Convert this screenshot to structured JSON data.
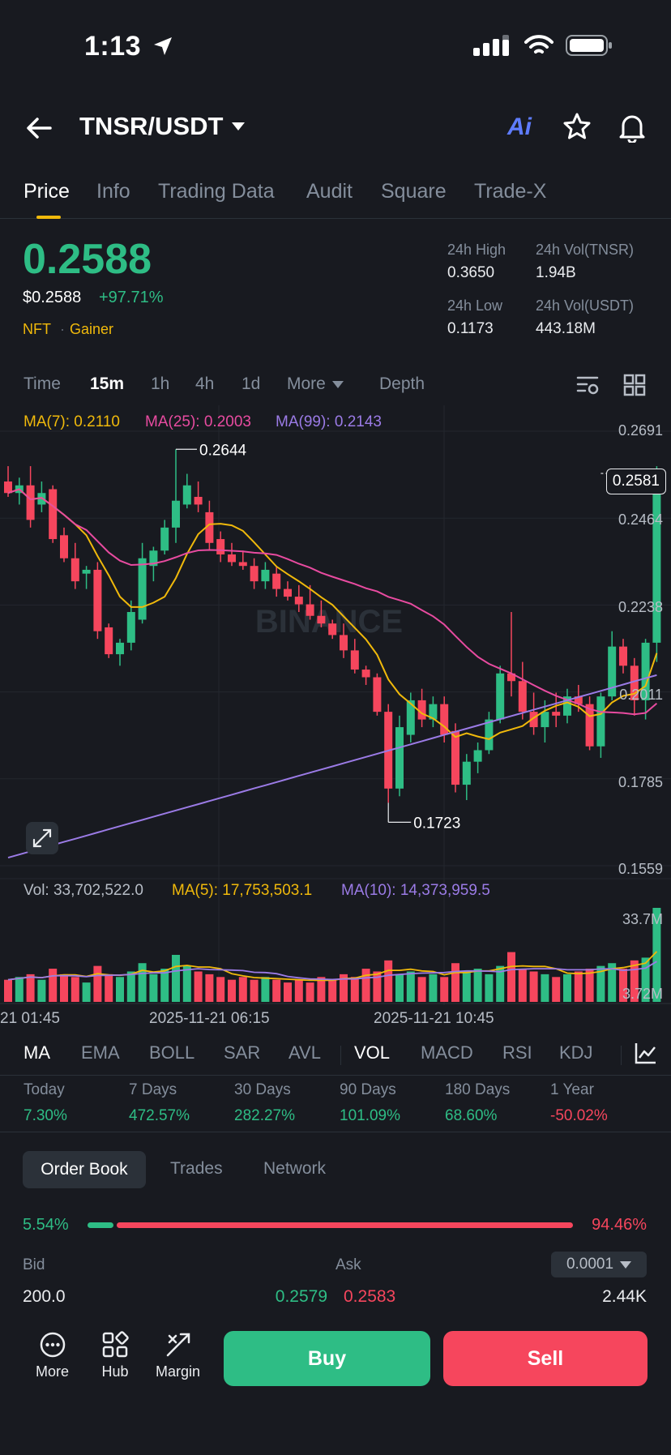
{
  "status_bar": {
    "time": "1:13"
  },
  "header": {
    "pair": "TNSR/USDT",
    "ai_label": "Ai"
  },
  "tabs": [
    "Price",
    "Info",
    "Trading Data",
    "Audit",
    "Square",
    "Trade-X"
  ],
  "price": {
    "last": "0.2588",
    "usd": "$0.2588",
    "change": "+97.71%",
    "tags": [
      "NFT",
      "Gainer"
    ],
    "tag_separator": "·"
  },
  "stats": {
    "high_label": "24h High",
    "high": "0.3650",
    "vol_base_label": "24h Vol(TNSR)",
    "vol_base": "1.94B",
    "low_label": "24h Low",
    "low": "0.1173",
    "vol_quote_label": "24h Vol(USDT)",
    "vol_quote": "443.18M"
  },
  "timeframes": {
    "time": "Time",
    "m15": "15m",
    "h1": "1h",
    "h4": "4h",
    "d1": "1d",
    "more": "More",
    "depth": "Depth"
  },
  "ma_legend": {
    "ma7": "MA(7): 0.2110",
    "ma25": "MA(25): 0.2003",
    "ma99": "MA(99): 0.2143"
  },
  "price_axis": [
    "0.2691",
    "0.2464",
    "0.2238",
    "0.2011",
    "0.1785",
    "0.1559"
  ],
  "current_price_tag": "0.2581",
  "annotations": {
    "high": "0.2644",
    "low": "0.1723"
  },
  "watermark": "BINANCE",
  "volume_legend": {
    "vol": "Vol: 33,702,522.0",
    "ma5": "MA(5): 17,753,503.1",
    "ma10": "MA(10): 14,373,959.5"
  },
  "volume_axis": [
    "33.7M",
    "3.72M"
  ],
  "time_axis": [
    "21 01:45",
    "2025-11-21 06:15",
    "2025-11-21 10:45"
  ],
  "indicators": {
    "ma": "MA",
    "ema": "EMA",
    "boll": "BOLL",
    "sar": "SAR",
    "avl": "AVL",
    "vol": "VOL",
    "macd": "MACD",
    "rsi": "RSI",
    "kdj": "KDJ"
  },
  "performance": [
    {
      "label": "Today",
      "value": "7.30%"
    },
    {
      "label": "7 Days",
      "value": "472.57%"
    },
    {
      "label": "30 Days",
      "value": "282.27%"
    },
    {
      "label": "90 Days",
      "value": "101.09%"
    },
    {
      "label": "180 Days",
      "value": "68.60%"
    },
    {
      "label": "1 Year",
      "value": "-50.02%"
    }
  ],
  "order_book": {
    "tabs": [
      "Order Book",
      "Trades",
      "Network"
    ],
    "bid_pct": "5.54%",
    "ask_pct": "94.46%",
    "bid_label": "Bid",
    "ask_label": "Ask",
    "precision": "0.0001",
    "bid_qty": "200.0",
    "bid_price": "0.2579",
    "ask_price": "0.2583",
    "ask_qty": "2.44K"
  },
  "bottom_bar": {
    "more": "More",
    "hub": "Hub",
    "margin": "Margin",
    "buy": "Buy",
    "sell": "Sell"
  },
  "colors": {
    "up": "#2ebd85",
    "down": "#f6465d",
    "ma7": "#f0b90b",
    "ma25": "#e84ba0",
    "ma99": "#9b7be6",
    "accent": "#f0b90b"
  },
  "chart_data": {
    "type": "candlestick",
    "ylim": [
      0.1559,
      0.2691
    ],
    "candles": [
      [
        0.256,
        0.26,
        0.252,
        0.253
      ],
      [
        0.253,
        0.257,
        0.25,
        0.255
      ],
      [
        0.255,
        0.26,
        0.244,
        0.246
      ],
      [
        0.25,
        0.256,
        0.248,
        0.253
      ],
      [
        0.254,
        0.255,
        0.24,
        0.241
      ],
      [
        0.242,
        0.244,
        0.235,
        0.236
      ],
      [
        0.236,
        0.24,
        0.228,
        0.23
      ],
      [
        0.232,
        0.234,
        0.228,
        0.233
      ],
      [
        0.233,
        0.235,
        0.215,
        0.217
      ],
      [
        0.218,
        0.219,
        0.21,
        0.211
      ],
      [
        0.211,
        0.215,
        0.208,
        0.214
      ],
      [
        0.214,
        0.225,
        0.212,
        0.222
      ],
      [
        0.22,
        0.24,
        0.219,
        0.236
      ],
      [
        0.234,
        0.239,
        0.23,
        0.238
      ],
      [
        0.238,
        0.246,
        0.237,
        0.244
      ],
      [
        0.244,
        0.2644,
        0.24,
        0.251
      ],
      [
        0.25,
        0.258,
        0.249,
        0.255
      ],
      [
        0.252,
        0.256,
        0.248,
        0.25
      ],
      [
        0.248,
        0.251,
        0.238,
        0.24
      ],
      [
        0.241,
        0.243,
        0.235,
        0.237
      ],
      [
        0.237,
        0.24,
        0.234,
        0.235
      ],
      [
        0.235,
        0.238,
        0.233,
        0.234
      ],
      [
        0.234,
        0.236,
        0.228,
        0.23
      ],
      [
        0.23,
        0.235,
        0.228,
        0.233
      ],
      [
        0.232,
        0.234,
        0.226,
        0.228
      ],
      [
        0.228,
        0.23,
        0.225,
        0.226
      ],
      [
        0.226,
        0.229,
        0.222,
        0.224
      ],
      [
        0.224,
        0.229,
        0.22,
        0.221
      ],
      [
        0.221,
        0.225,
        0.218,
        0.219
      ],
      [
        0.219,
        0.22,
        0.215,
        0.216
      ],
      [
        0.216,
        0.219,
        0.21,
        0.212
      ],
      [
        0.212,
        0.215,
        0.206,
        0.207
      ],
      [
        0.207,
        0.208,
        0.203,
        0.205
      ],
      [
        0.205,
        0.206,
        0.195,
        0.196
      ],
      [
        0.196,
        0.198,
        0.1723,
        0.176
      ],
      [
        0.176,
        0.195,
        0.174,
        0.192
      ],
      [
        0.19,
        0.201,
        0.188,
        0.199
      ],
      [
        0.199,
        0.202,
        0.192,
        0.194
      ],
      [
        0.194,
        0.2,
        0.192,
        0.198
      ],
      [
        0.198,
        0.2,
        0.188,
        0.19
      ],
      [
        0.191,
        0.193,
        0.175,
        0.177
      ],
      [
        0.177,
        0.185,
        0.173,
        0.183
      ],
      [
        0.183,
        0.188,
        0.18,
        0.186
      ],
      [
        0.186,
        0.196,
        0.185,
        0.194
      ],
      [
        0.194,
        0.208,
        0.193,
        0.206
      ],
      [
        0.206,
        0.222,
        0.2,
        0.204
      ],
      [
        0.204,
        0.209,
        0.194,
        0.196
      ],
      [
        0.196,
        0.201,
        0.19,
        0.192
      ],
      [
        0.192,
        0.199,
        0.188,
        0.196
      ],
      [
        0.196,
        0.201,
        0.192,
        0.195
      ],
      [
        0.195,
        0.202,
        0.193,
        0.2
      ],
      [
        0.2,
        0.203,
        0.196,
        0.198
      ],
      [
        0.198,
        0.2,
        0.186,
        0.187
      ],
      [
        0.187,
        0.201,
        0.184,
        0.2
      ],
      [
        0.2,
        0.217,
        0.199,
        0.213
      ],
      [
        0.213,
        0.215,
        0.206,
        0.208
      ],
      [
        0.208,
        0.21,
        0.195,
        0.199
      ],
      [
        0.199,
        0.215,
        0.194,
        0.214
      ],
      [
        0.214,
        0.26,
        0.209,
        0.2581
      ]
    ],
    "volumes": [
      8,
      9,
      10,
      8,
      12,
      10,
      9,
      7,
      13,
      10,
      9,
      11,
      14,
      10,
      12,
      17,
      13,
      11,
      10,
      9,
      8,
      9,
      8,
      9,
      8,
      7,
      8,
      7,
      9,
      8,
      10,
      9,
      12,
      11,
      15,
      10,
      11,
      9,
      10,
      9,
      14,
      11,
      12,
      10,
      13,
      18,
      12,
      11,
      10,
      9,
      10,
      11,
      12,
      13,
      14,
      12,
      15,
      16,
      34
    ]
  }
}
